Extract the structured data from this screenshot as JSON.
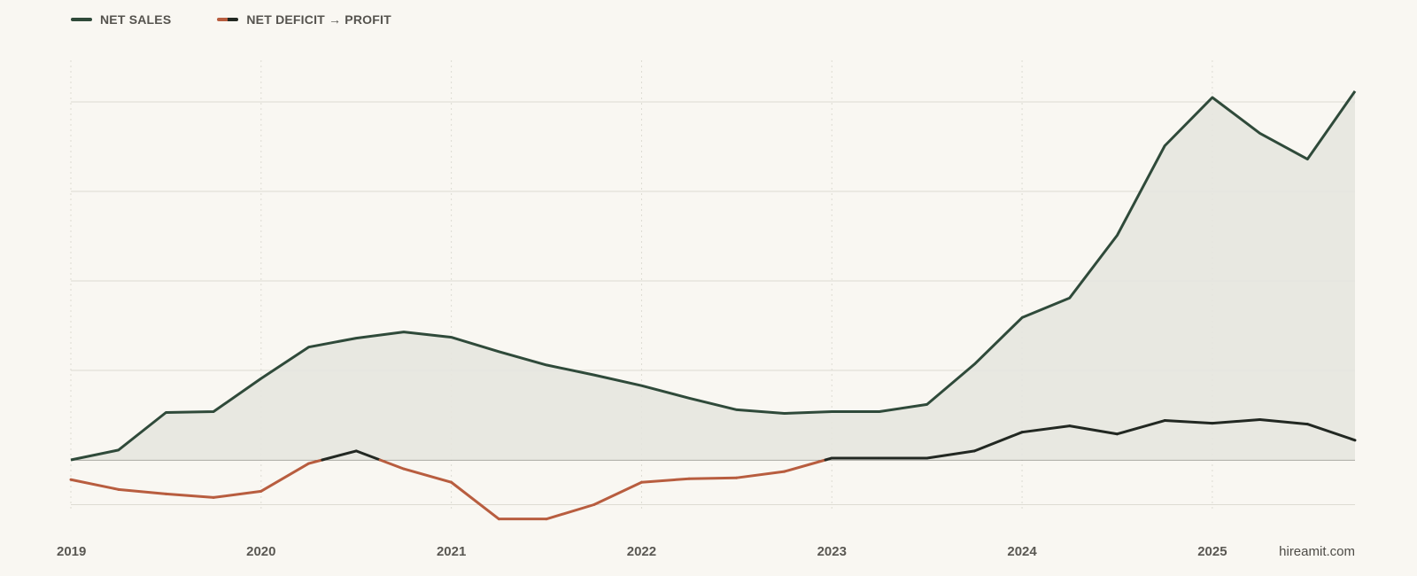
{
  "legend": [
    {
      "label": "NET SALES",
      "colors": [
        "#2f4a3a"
      ]
    },
    {
      "label": "NET DEFICIT → PROFIT",
      "colors": [
        "#b85d3f",
        "#222822"
      ]
    }
  ],
  "brand": "hireamit.com",
  "colors": {
    "sales": "#2f4a3a",
    "deficit": "#b85d3f",
    "profit": "#222822",
    "area": "#e5e6df",
    "grid": "#dddbd3",
    "baseline": "#8a8a84",
    "background": "#f9f7f2"
  },
  "chart_data": {
    "type": "line",
    "title": "",
    "xlabel": "",
    "ylabel": "",
    "x_tick_labels": [
      "2019",
      "2020",
      "2021",
      "2022",
      "2023",
      "2024",
      "2025"
    ],
    "xlim": [
      2019,
      2025.75
    ],
    "ylim": [
      -0.5,
      4.2
    ],
    "y_gridlines": [
      -0.5,
      1,
      2,
      3,
      4
    ],
    "y_tick_labels_shown": false,
    "grid": true,
    "legend_position": "top-left",
    "x": [
      2019,
      2019.25,
      2019.5,
      2019.75,
      2020,
      2020.25,
      2020.5,
      2020.75,
      2021,
      2021.25,
      2021.5,
      2021.75,
      2022,
      2022.25,
      2022.5,
      2022.75,
      2023,
      2023.25,
      2023.5,
      2023.75,
      2024,
      2024.25,
      2024.5,
      2024.75,
      2025,
      2025.25,
      2025.5,
      2025.75
    ],
    "series": [
      {
        "name": "NET SALES",
        "role": "sales",
        "filled": true,
        "values": [
          0.0,
          0.11,
          0.53,
          0.54,
          0.91,
          1.26,
          1.36,
          1.43,
          1.37,
          1.21,
          1.06,
          0.95,
          0.83,
          0.69,
          0.56,
          0.52,
          0.54,
          0.54,
          0.62,
          1.07,
          1.59,
          1.81,
          2.51,
          3.51,
          4.05,
          3.65,
          3.36,
          4.12
        ]
      },
      {
        "name": "NET DEFICIT → PROFIT",
        "role": "net",
        "values": [
          -0.22,
          -0.33,
          -0.38,
          -0.42,
          -0.35,
          -0.04,
          0.1,
          -0.1,
          -0.25,
          -0.66,
          -0.66,
          -0.5,
          -0.25,
          -0.21,
          -0.2,
          -0.13,
          0.02,
          0.02,
          0.02,
          0.1,
          0.31,
          0.38,
          0.29,
          0.44,
          0.41,
          0.45,
          0.4,
          0.22
        ]
      }
    ]
  }
}
